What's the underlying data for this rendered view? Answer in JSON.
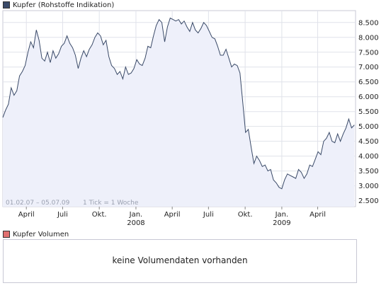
{
  "price_panel": {
    "legend_label": "Kupfer (Rohstoffe Indikation)",
    "legend_color": "#3a4a68",
    "range_text": "01.02.07 – 05.07.09",
    "tick_text": "1 Tick = 1 Woche"
  },
  "volume_panel": {
    "legend_label": "Kupfer Volumen",
    "legend_color": "#e07070",
    "message": "keine Volumendaten vorhanden"
  },
  "chart_data": {
    "type": "area",
    "title": "",
    "xlabel": "",
    "ylabel": "",
    "ylim": [
      2.3,
      8.9
    ],
    "y_ticks": [
      "2.500",
      "3.000",
      "3.500",
      "4.000",
      "4.500",
      "5.000",
      "5.500",
      "6.000",
      "6.500",
      "7.000",
      "7.500",
      "8.000",
      "8.500"
    ],
    "y_tick_values": [
      2.5,
      3.0,
      3.5,
      4.0,
      4.5,
      5.0,
      5.5,
      6.0,
      6.5,
      7.0,
      7.5,
      8.0,
      8.5
    ],
    "x_range": [
      "2007-02-01",
      "2009-07-05"
    ],
    "x_ticks": [
      {
        "date": "2007-04-01",
        "label": "April",
        "year": ""
      },
      {
        "date": "2007-07-01",
        "label": "Juli",
        "year": ""
      },
      {
        "date": "2007-10-01",
        "label": "Okt.",
        "year": ""
      },
      {
        "date": "2008-01-01",
        "label": "Jan.",
        "year": "2008"
      },
      {
        "date": "2008-04-01",
        "label": "April",
        "year": ""
      },
      {
        "date": "2008-07-01",
        "label": "Juli",
        "year": ""
      },
      {
        "date": "2008-10-01",
        "label": "Okt.",
        "year": ""
      },
      {
        "date": "2009-01-01",
        "label": "Jan.",
        "year": "2009"
      },
      {
        "date": "2009-04-01",
        "label": "April",
        "year": ""
      }
    ],
    "grid": true,
    "series": [
      {
        "line_color": "#3a4a68",
        "fill_color": "#eef0fa",
        "points": [
          [
            "2007-02-01",
            5.3
          ],
          [
            "2007-02-08",
            5.55
          ],
          [
            "2007-02-15",
            5.75
          ],
          [
            "2007-02-22",
            6.3
          ],
          [
            "2007-03-01",
            6.05
          ],
          [
            "2007-03-08",
            6.2
          ],
          [
            "2007-03-15",
            6.7
          ],
          [
            "2007-03-22",
            6.85
          ],
          [
            "2007-03-29",
            7.05
          ],
          [
            "2007-04-05",
            7.5
          ],
          [
            "2007-04-12",
            7.85
          ],
          [
            "2007-04-19",
            7.65
          ],
          [
            "2007-04-26",
            8.25
          ],
          [
            "2007-05-03",
            7.9
          ],
          [
            "2007-05-10",
            7.3
          ],
          [
            "2007-05-17",
            7.2
          ],
          [
            "2007-05-24",
            7.5
          ],
          [
            "2007-05-31",
            7.15
          ],
          [
            "2007-06-07",
            7.55
          ],
          [
            "2007-06-14",
            7.3
          ],
          [
            "2007-06-21",
            7.45
          ],
          [
            "2007-06-28",
            7.7
          ],
          [
            "2007-07-05",
            7.8
          ],
          [
            "2007-07-12",
            8.05
          ],
          [
            "2007-07-19",
            7.8
          ],
          [
            "2007-07-26",
            7.65
          ],
          [
            "2007-08-02",
            7.4
          ],
          [
            "2007-08-09",
            6.95
          ],
          [
            "2007-08-16",
            7.3
          ],
          [
            "2007-08-23",
            7.55
          ],
          [
            "2007-08-30",
            7.35
          ],
          [
            "2007-09-06",
            7.6
          ],
          [
            "2007-09-13",
            7.75
          ],
          [
            "2007-09-20",
            8.0
          ],
          [
            "2007-09-27",
            8.15
          ],
          [
            "2007-10-04",
            8.05
          ],
          [
            "2007-10-11",
            7.75
          ],
          [
            "2007-10-18",
            7.9
          ],
          [
            "2007-10-25",
            7.35
          ],
          [
            "2007-11-01",
            7.05
          ],
          [
            "2007-11-08",
            6.95
          ],
          [
            "2007-11-15",
            6.75
          ],
          [
            "2007-11-22",
            6.85
          ],
          [
            "2007-11-29",
            6.6
          ],
          [
            "2007-12-06",
            7.0
          ],
          [
            "2007-12-13",
            6.75
          ],
          [
            "2007-12-20",
            6.8
          ],
          [
            "2007-12-27",
            6.95
          ],
          [
            "2008-01-03",
            7.25
          ],
          [
            "2008-01-10",
            7.1
          ],
          [
            "2008-01-17",
            7.05
          ],
          [
            "2008-01-24",
            7.3
          ],
          [
            "2008-01-31",
            7.7
          ],
          [
            "2008-02-07",
            7.65
          ],
          [
            "2008-02-14",
            8.05
          ],
          [
            "2008-02-21",
            8.4
          ],
          [
            "2008-02-28",
            8.6
          ],
          [
            "2008-03-06",
            8.5
          ],
          [
            "2008-03-13",
            7.85
          ],
          [
            "2008-03-20",
            8.35
          ],
          [
            "2008-03-27",
            8.65
          ],
          [
            "2008-04-03",
            8.6
          ],
          [
            "2008-04-10",
            8.55
          ],
          [
            "2008-04-17",
            8.6
          ],
          [
            "2008-04-24",
            8.45
          ],
          [
            "2008-05-01",
            8.55
          ],
          [
            "2008-05-08",
            8.35
          ],
          [
            "2008-05-15",
            8.2
          ],
          [
            "2008-05-22",
            8.5
          ],
          [
            "2008-05-29",
            8.25
          ],
          [
            "2008-06-05",
            8.15
          ],
          [
            "2008-06-12",
            8.3
          ],
          [
            "2008-06-19",
            8.5
          ],
          [
            "2008-06-26",
            8.4
          ],
          [
            "2008-07-03",
            8.2
          ],
          [
            "2008-07-10",
            8.0
          ],
          [
            "2008-07-17",
            7.95
          ],
          [
            "2008-07-24",
            7.7
          ],
          [
            "2008-07-31",
            7.4
          ],
          [
            "2008-08-07",
            7.4
          ],
          [
            "2008-08-14",
            7.6
          ],
          [
            "2008-08-21",
            7.3
          ],
          [
            "2008-08-28",
            7.0
          ],
          [
            "2008-09-04",
            7.1
          ],
          [
            "2008-09-11",
            7.05
          ],
          [
            "2008-09-18",
            6.8
          ],
          [
            "2008-09-25",
            5.8
          ],
          [
            "2008-10-02",
            4.8
          ],
          [
            "2008-10-09",
            4.9
          ],
          [
            "2008-10-16",
            4.3
          ],
          [
            "2008-10-23",
            3.75
          ],
          [
            "2008-10-30",
            4.0
          ],
          [
            "2008-11-06",
            3.85
          ],
          [
            "2008-11-13",
            3.65
          ],
          [
            "2008-11-20",
            3.7
          ],
          [
            "2008-11-27",
            3.5
          ],
          [
            "2008-12-04",
            3.55
          ],
          [
            "2008-12-11",
            3.2
          ],
          [
            "2008-12-18",
            3.1
          ],
          [
            "2008-12-25",
            2.95
          ],
          [
            "2009-01-01",
            2.9
          ],
          [
            "2009-01-08",
            3.2
          ],
          [
            "2009-01-15",
            3.4
          ],
          [
            "2009-01-22",
            3.35
          ],
          [
            "2009-01-29",
            3.3
          ],
          [
            "2009-02-05",
            3.25
          ],
          [
            "2009-02-12",
            3.55
          ],
          [
            "2009-02-19",
            3.45
          ],
          [
            "2009-02-26",
            3.25
          ],
          [
            "2009-03-05",
            3.4
          ],
          [
            "2009-03-12",
            3.7
          ],
          [
            "2009-03-19",
            3.65
          ],
          [
            "2009-03-26",
            3.9
          ],
          [
            "2009-04-02",
            4.15
          ],
          [
            "2009-04-09",
            4.05
          ],
          [
            "2009-04-16",
            4.5
          ],
          [
            "2009-04-23",
            4.6
          ],
          [
            "2009-04-30",
            4.8
          ],
          [
            "2009-05-07",
            4.5
          ],
          [
            "2009-05-14",
            4.45
          ],
          [
            "2009-05-21",
            4.75
          ],
          [
            "2009-05-28",
            4.5
          ],
          [
            "2009-06-04",
            4.75
          ],
          [
            "2009-06-11",
            4.95
          ],
          [
            "2009-06-18",
            5.25
          ],
          [
            "2009-06-25",
            4.95
          ],
          [
            "2009-07-02",
            5.05
          ]
        ]
      }
    ]
  }
}
